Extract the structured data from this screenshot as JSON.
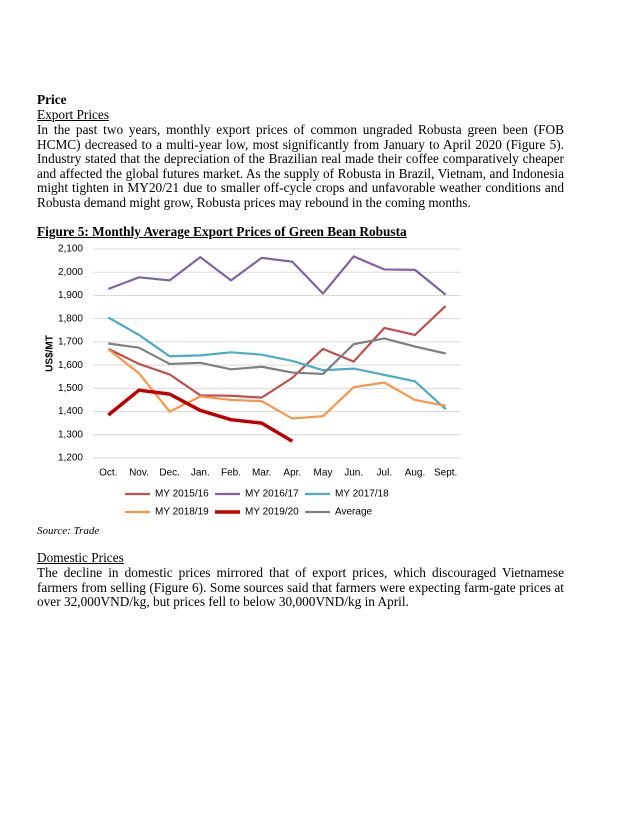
{
  "section": {
    "heading": "Price",
    "subheading": "Export Prices",
    "paragraph": "In the past two years, monthly export prices of common ungraded Robusta green been (FOB HCMC) decreased to a multi-year low, most significantly from January to April 2020 (Figure 5).  Industry stated that the depreciation of the Brazilian real made their coffee comparatively cheaper and affected the global futures market.  As the supply of Robusta in Brazil, Vietnam, and Indonesia might tighten in MY20/21 due to smaller off-cycle crops and unfavorable weather conditions and Robusta demand might grow, Robusta prices may rebound in the coming months."
  },
  "figure": {
    "caption": "Figure 5: Monthly Average Export Prices of Green Bean Robusta",
    "source": "Source: Trade"
  },
  "chart_data": {
    "type": "line",
    "y_label": "US$/MT",
    "categories": [
      "Oct.",
      "Nov.",
      "Dec.",
      "Jan.",
      "Feb.",
      "Mar.",
      "Apr.",
      "May",
      "Jun.",
      "Jul.",
      "Aug.",
      "Sept."
    ],
    "series": [
      {
        "name": "MY 2015/16",
        "color": "#c0504d",
        "values": [
          1670,
          1605,
          1560,
          1470,
          1468,
          1460,
          1545,
          1670,
          1615,
          1760,
          1730,
          1855
        ]
      },
      {
        "name": "MY 2016/17",
        "color": "#8064a2",
        "values": [
          1928,
          1978,
          1965,
          2065,
          1965,
          2062,
          2045,
          1908,
          2068,
          2012,
          2010,
          1903
        ]
      },
      {
        "name": "MY 2017/18",
        "color": "#4bacc6",
        "values": [
          1805,
          1730,
          1638,
          1642,
          1655,
          1645,
          1618,
          1578,
          1585,
          1558,
          1530,
          1410
        ]
      },
      {
        "name": "MY 2018/19",
        "color": "#f79646",
        "values": [
          1668,
          1565,
          1400,
          1465,
          1450,
          1445,
          1370,
          1380,
          1505,
          1525,
          1450,
          1425
        ]
      },
      {
        "name": "MY 2019/20",
        "color": "#c00000",
        "values": [
          1385,
          1492,
          1475,
          1405,
          1365,
          1350,
          1272,
          null,
          null,
          null,
          null,
          null
        ]
      },
      {
        "name": "Average",
        "color": "#7f7f7f",
        "values": [
          1693,
          1675,
          1605,
          1610,
          1582,
          1593,
          1568,
          1562,
          1690,
          1715,
          1680,
          1650
        ]
      }
    ],
    "ylim": [
      1200,
      2100
    ],
    "yticks": [
      {
        "value": 1200,
        "label": "1,200"
      },
      {
        "value": 1300,
        "label": "1,300"
      },
      {
        "value": 1400,
        "label": "1,400"
      },
      {
        "value": 1500,
        "label": "1,500"
      },
      {
        "value": 1600,
        "label": "1,600"
      },
      {
        "value": 1700,
        "label": "1,700"
      },
      {
        "value": 1800,
        "label": "1,800"
      },
      {
        "value": 1900,
        "label": "1,900"
      },
      {
        "value": 2000,
        "label": "2,000"
      },
      {
        "value": 2100,
        "label": "2,100"
      }
    ],
    "grid": true,
    "legend": "bottom"
  },
  "domestic": {
    "subheading": "Domestic Prices",
    "paragraph": "The decline in domestic prices mirrored that of export prices, which discouraged Vietnamese farmers from selling (Figure 6).  Some sources said that farmers were expecting farm-gate prices at over 32,000VND/kg, but prices fell to below 30,000VND/kg in April."
  }
}
